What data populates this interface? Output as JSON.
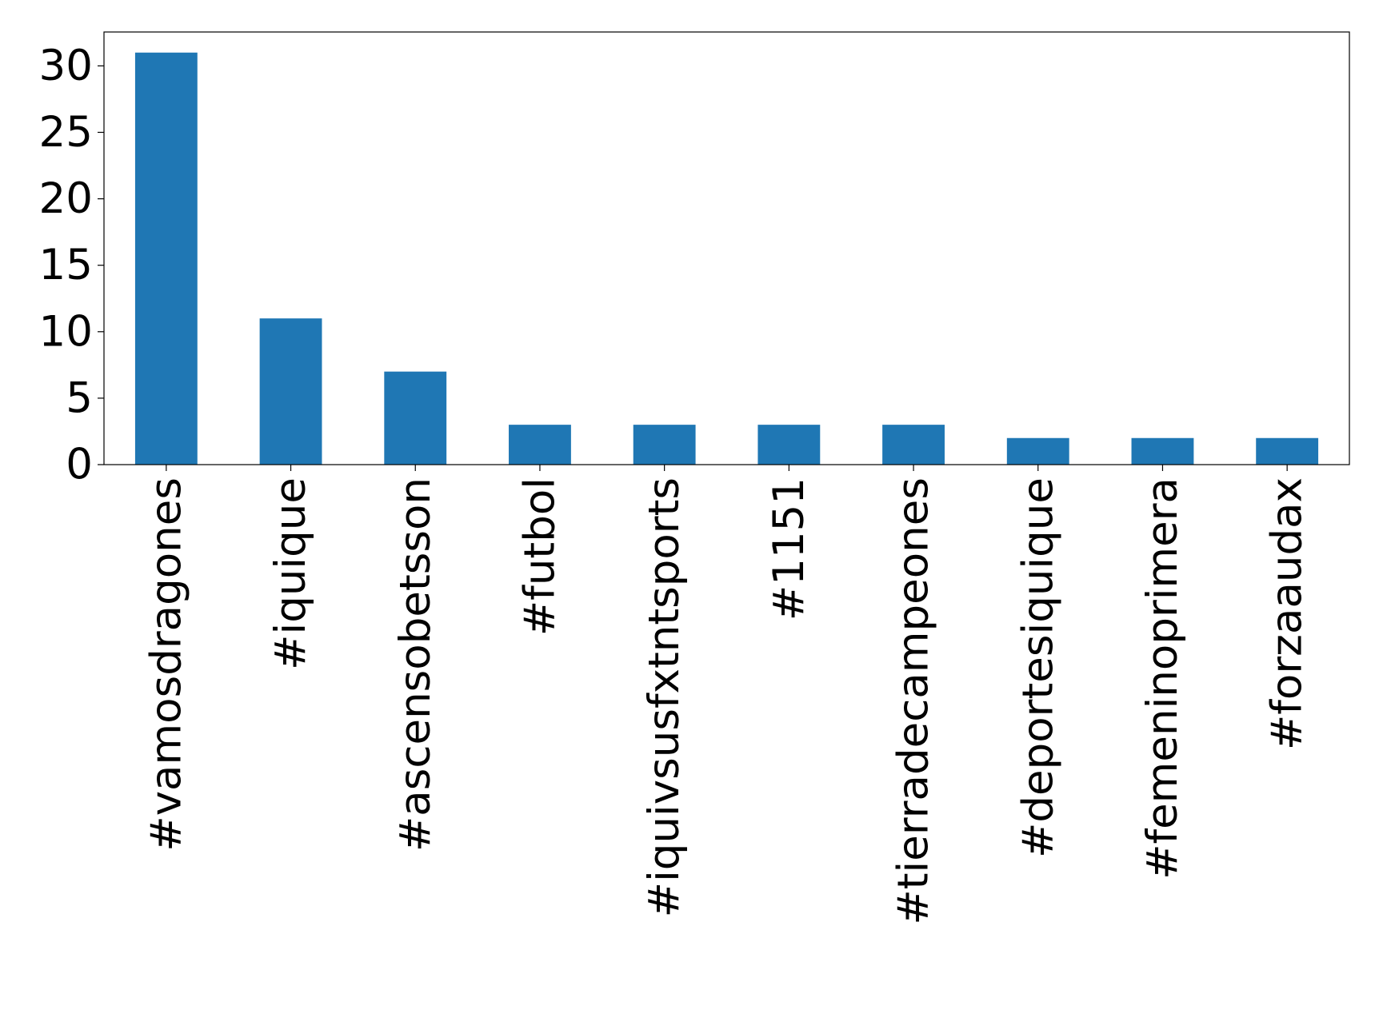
{
  "chart_data": {
    "type": "bar",
    "categories": [
      "#vamosdragones",
      "#iquique",
      "#ascensobetsson",
      "#futbol",
      "#iquivsusfxtntsports",
      "#1151",
      "#tierradecampeones",
      "#deportesiquique",
      "#femeninoprimera",
      "#forzaaudax"
    ],
    "values": [
      31,
      11,
      7,
      3,
      3,
      3,
      3,
      2,
      2,
      2
    ],
    "color": "#1f77b4",
    "ylim": [
      0,
      32.55
    ],
    "yticks": [
      0,
      5,
      10,
      15,
      20,
      25,
      30
    ],
    "grid": false
  }
}
